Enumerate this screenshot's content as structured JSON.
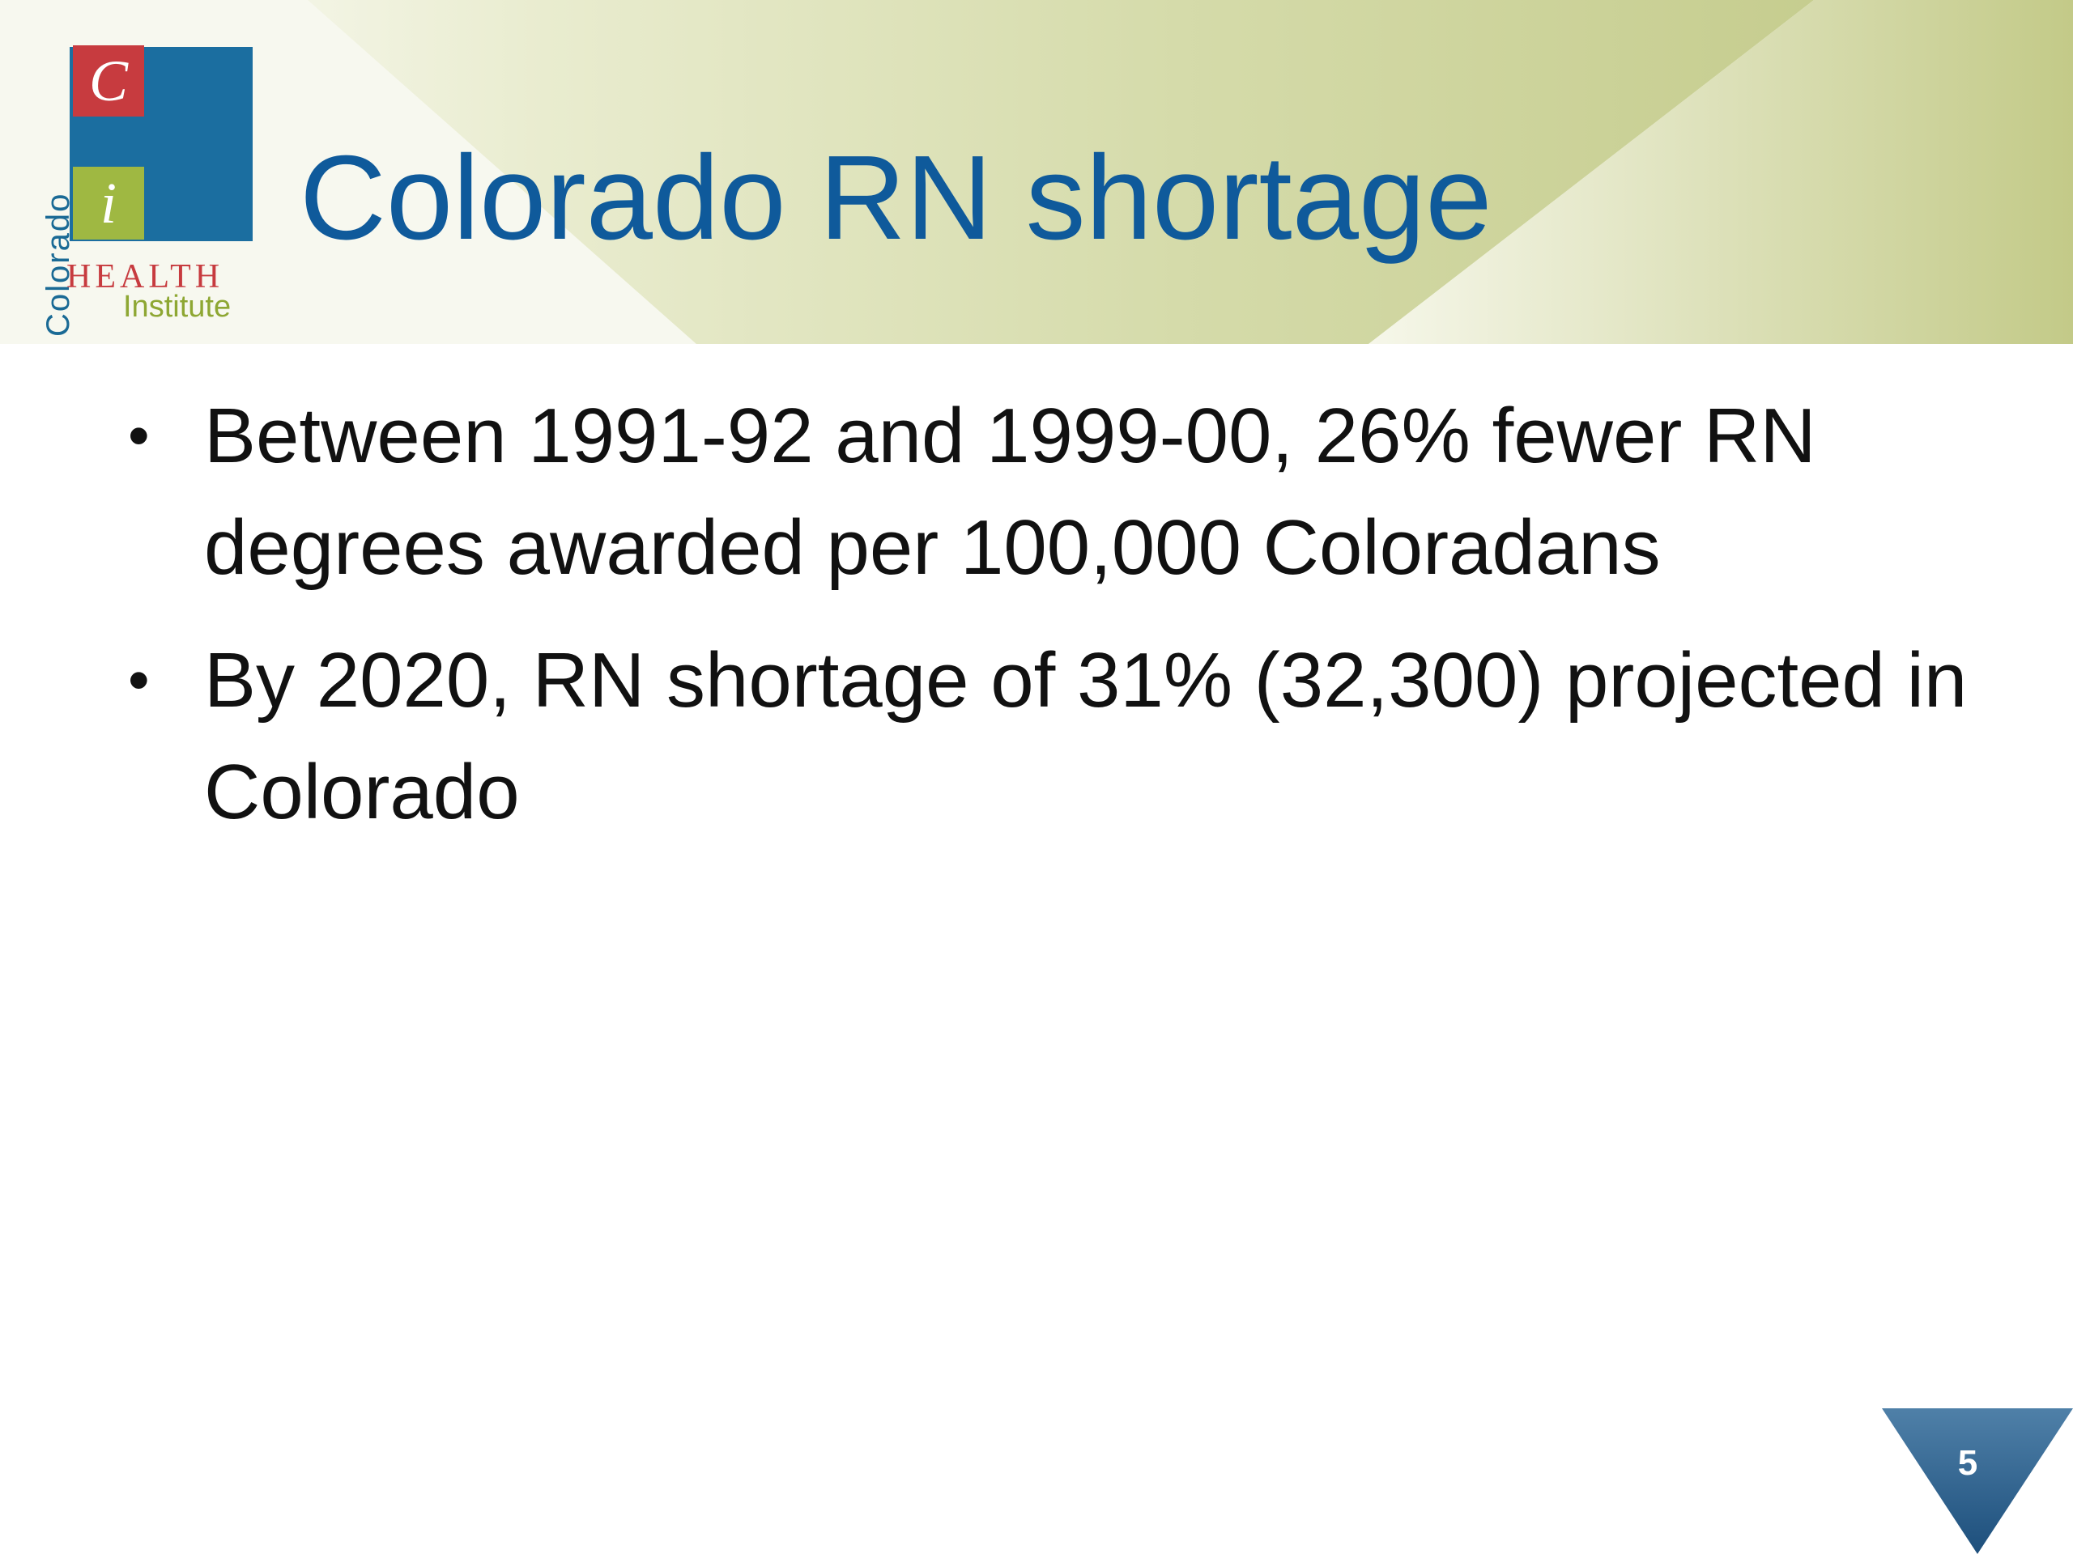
{
  "title": "Colorado RN shortage",
  "logo": {
    "vertical_text": "Colorado",
    "letter_top": "C",
    "letter_bottom": "i",
    "health": "HEALTH",
    "institute": "Institute",
    "colors": {
      "blue": "#1b6ea0",
      "red": "#c73b3f",
      "green": "#9fb842"
    }
  },
  "bullets": [
    {
      "marker": "•",
      "text": "Between 1991-92 and 1999-00, 26% fewer RN degrees awarded per 100,000 Coloradans"
    },
    {
      "marker": "•",
      "text": "By 2020, RN shortage of 31% (32,300) projected in Colorado"
    }
  ],
  "page_number": "5",
  "colors": {
    "title": "#0f5a9b",
    "header_band": "#cfd6a6",
    "page_marker": "#2f5f8a"
  }
}
